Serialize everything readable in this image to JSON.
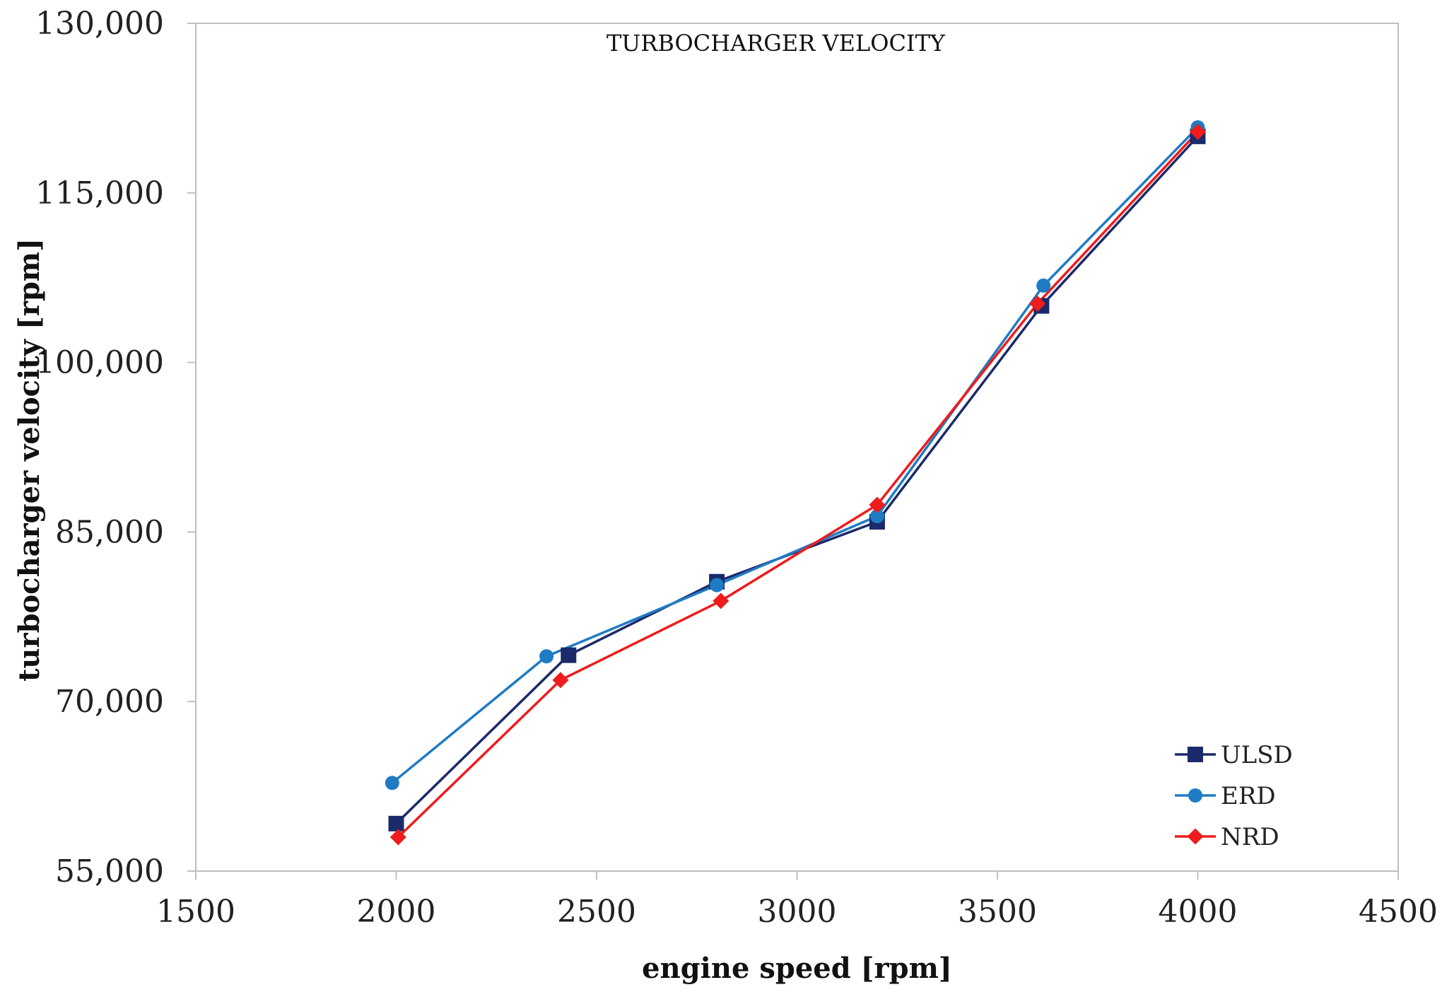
{
  "chart_data": {
    "type": "line",
    "title": "TURBOCHARGER VELOCITY",
    "xlabel": "engine speed [rpm]",
    "ylabel": "turbocharger velocity [rpm]",
    "xlim": [
      1500,
      4500
    ],
    "ylim": [
      55000,
      130000
    ],
    "xticks": [
      1500,
      2000,
      2500,
      3000,
      3500,
      4000,
      4500
    ],
    "xtick_labels": [
      "1500",
      "2000",
      "2500",
      "3000",
      "3500",
      "4000",
      "4500"
    ],
    "yticks": [
      55000,
      70000,
      85000,
      100000,
      115000,
      130000
    ],
    "ytick_labels": [
      "55,000",
      "70,000",
      "85,000",
      "100,000",
      "115,000",
      "130,000"
    ],
    "grid": false,
    "legend_position": "bottom-right",
    "series": [
      {
        "name": "ULSD",
        "color": "#1b2a6b",
        "marker": "square",
        "x": [
          2000,
          2430,
          2800,
          3200,
          3610,
          4000
        ],
        "y": [
          59200,
          74100,
          80600,
          85900,
          105000,
          120000
        ]
      },
      {
        "name": "ERD",
        "color": "#1f7bc4",
        "marker": "circle",
        "x": [
          1990,
          2375,
          2800,
          3200,
          3615,
          4000
        ],
        "y": [
          62800,
          74000,
          80300,
          86400,
          106800,
          120800
        ]
      },
      {
        "name": "NRD",
        "color": "#ee1c1c",
        "marker": "diamond",
        "x": [
          2005,
          2410,
          2810,
          3200,
          3600,
          4000
        ],
        "y": [
          58000,
          71900,
          78900,
          87400,
          105200,
          120400
        ]
      }
    ]
  }
}
